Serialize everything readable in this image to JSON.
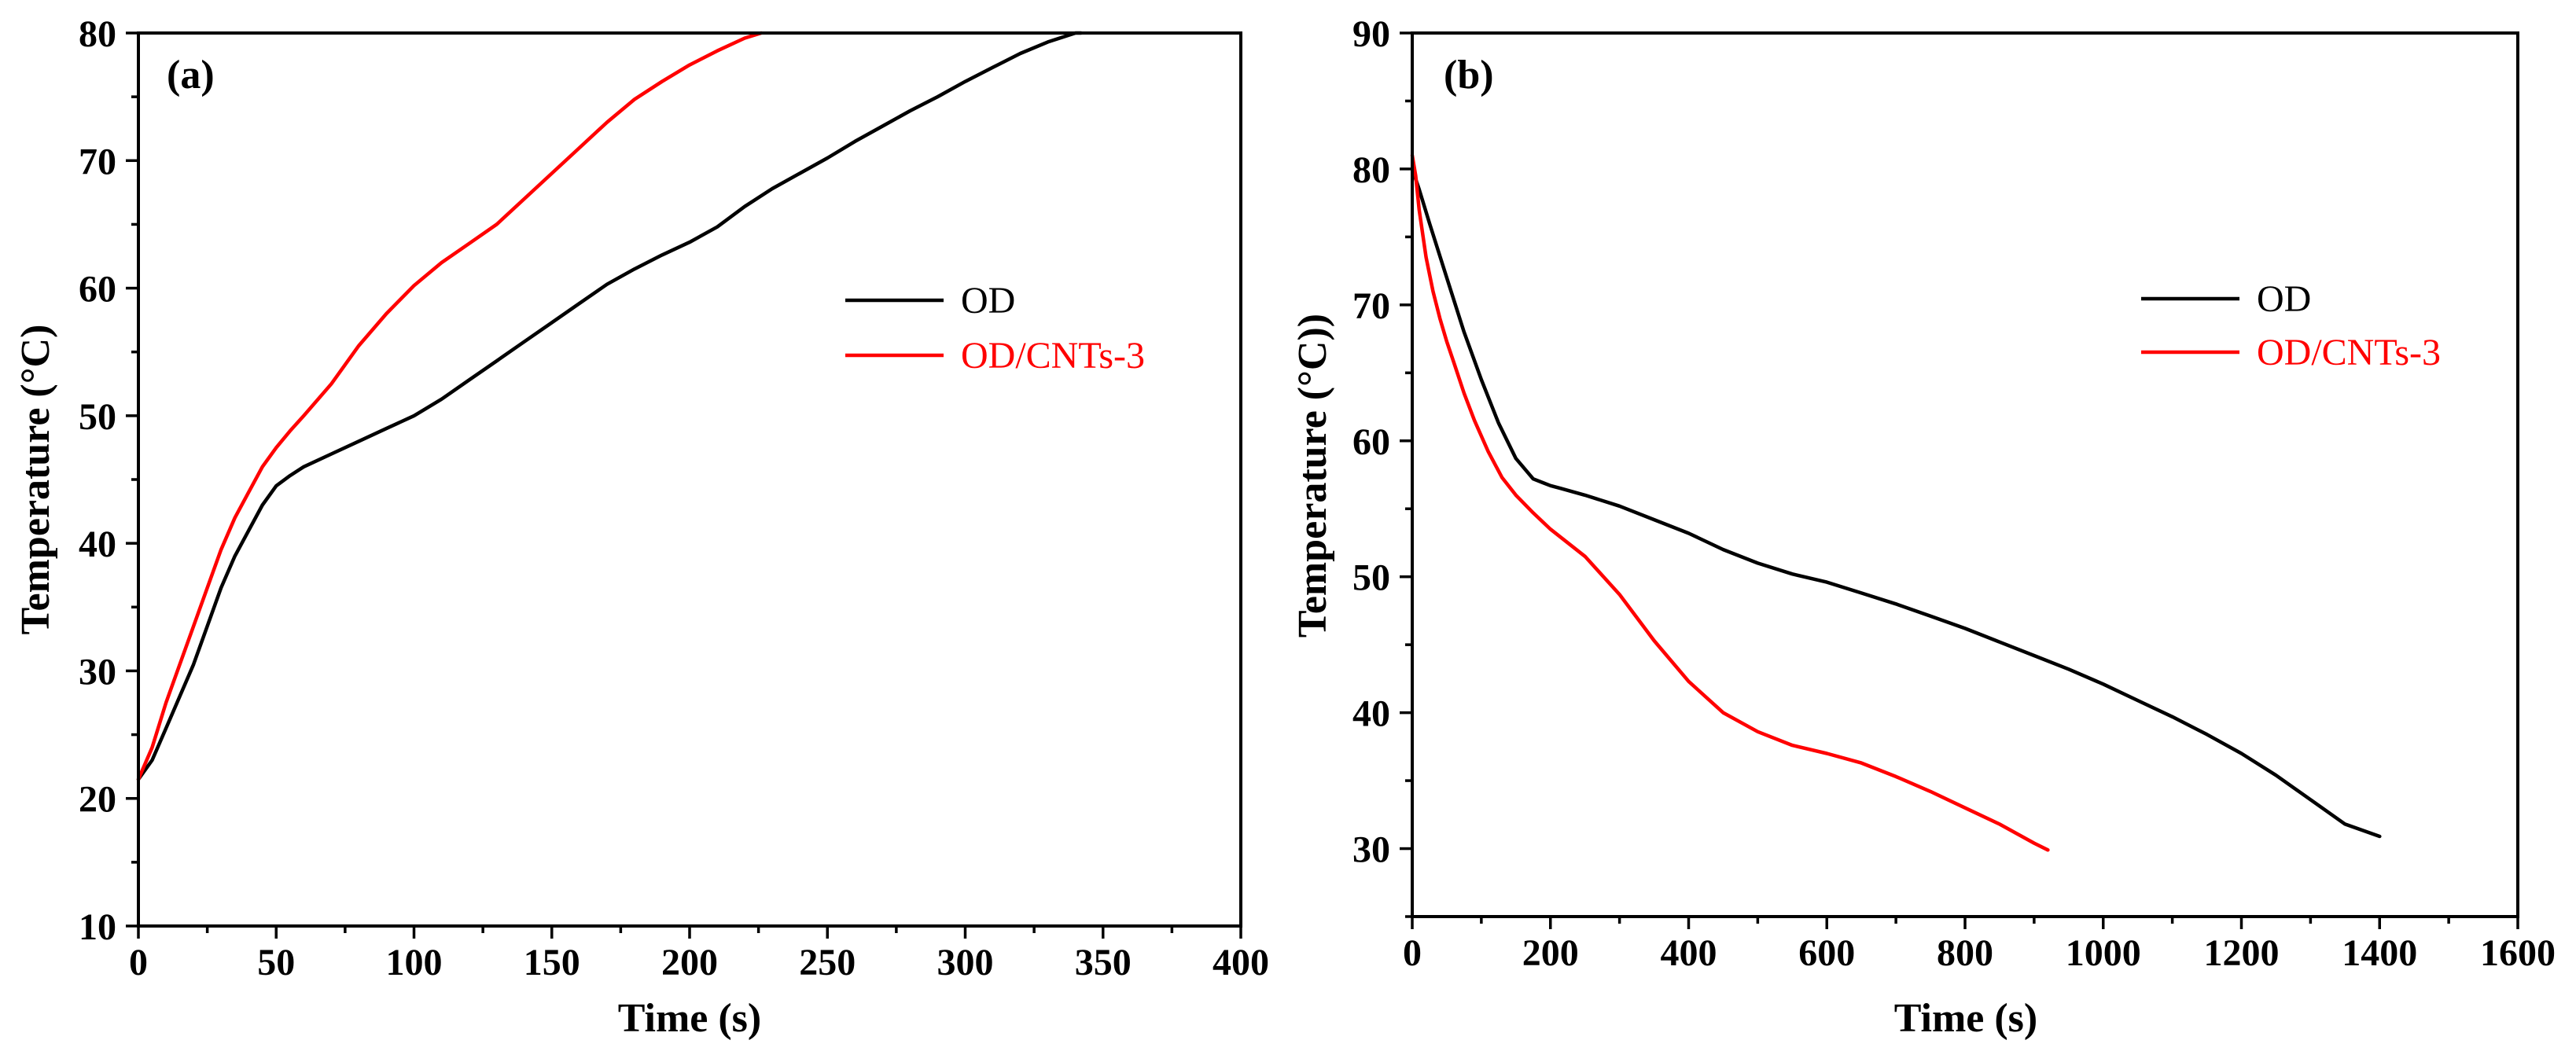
{
  "chart_data": [
    {
      "type": "line",
      "panel_label": "(a)",
      "xlabel": "Time (s)",
      "ylabel": "Temperature (°C)",
      "xlim": [
        0,
        400
      ],
      "ylim": [
        10,
        80
      ],
      "xticks": [
        0,
        50,
        100,
        150,
        200,
        250,
        300,
        350,
        400
      ],
      "yticks": [
        10,
        20,
        30,
        40,
        50,
        60,
        70,
        80
      ],
      "xtick_labels": [
        "0",
        "50",
        "100",
        "150",
        "200",
        "250",
        "300",
        "350",
        "400"
      ],
      "ytick_labels": [
        "10",
        "20",
        "30",
        "40",
        "50",
        "60",
        "70",
        "80"
      ],
      "legend_position": "center-right",
      "series": [
        {
          "name": "OD",
          "color": "#000000",
          "x": [
            0,
            5,
            10,
            15,
            20,
            25,
            30,
            35,
            40,
            45,
            50,
            55,
            60,
            70,
            80,
            90,
            100,
            110,
            120,
            130,
            140,
            150,
            160,
            170,
            180,
            190,
            200,
            210,
            220,
            230,
            240,
            250,
            260,
            270,
            280,
            290,
            300,
            310,
            320,
            330,
            340,
            342
          ],
          "y": [
            21.5,
            23,
            25.5,
            28,
            30.5,
            33.5,
            36.5,
            39,
            41,
            43,
            44.5,
            45.3,
            46,
            47,
            48,
            49,
            50,
            51.3,
            52.8,
            54.3,
            55.8,
            57.3,
            58.8,
            60.3,
            61.5,
            62.6,
            63.6,
            64.8,
            66.4,
            67.8,
            69,
            70.2,
            71.5,
            72.7,
            73.9,
            75,
            76.2,
            77.3,
            78.4,
            79.3,
            80,
            80
          ]
        },
        {
          "name": "OD/CNTs-3",
          "color": "#ff0000",
          "x": [
            0,
            5,
            10,
            15,
            20,
            25,
            30,
            35,
            40,
            45,
            50,
            55,
            60,
            70,
            80,
            90,
            100,
            110,
            120,
            130,
            140,
            150,
            160,
            170,
            180,
            190,
            200,
            210,
            220,
            226
          ],
          "y": [
            21.5,
            24,
            27.5,
            30.5,
            33.5,
            36.5,
            39.5,
            42,
            44,
            46,
            47.5,
            48.8,
            50,
            52.5,
            55.5,
            58,
            60.2,
            62,
            63.5,
            65,
            67,
            69,
            71,
            73,
            74.8,
            76.2,
            77.5,
            78.6,
            79.6,
            80
          ]
        }
      ]
    },
    {
      "type": "line",
      "panel_label": "(b)",
      "xlabel": "Time (s)",
      "ylabel": "Temperature (°C))",
      "xlim": [
        0,
        1600
      ],
      "ylim": [
        25,
        90
      ],
      "xticks": [
        0,
        200,
        400,
        600,
        800,
        1000,
        1200,
        1400,
        1600
      ],
      "yticks": [
        30,
        40,
        50,
        60,
        70,
        80,
        90
      ],
      "xtick_labels": [
        "0",
        "200",
        "400",
        "600",
        "800",
        "1000",
        "1200",
        "1400",
        "1600"
      ],
      "ytick_labels": [
        "30",
        "40",
        "50",
        "60",
        "70",
        "80",
        "90"
      ],
      "legend_position": "upper-right",
      "series": [
        {
          "name": "OD",
          "color": "#000000",
          "x": [
            0,
            10,
            25,
            50,
            75,
            100,
            125,
            150,
            175,
            190,
            200,
            215,
            250,
            300,
            350,
            400,
            450,
            500,
            550,
            600,
            650,
            700,
            750,
            800,
            850,
            900,
            950,
            1000,
            1050,
            1100,
            1150,
            1200,
            1250,
            1300,
            1350,
            1400
          ],
          "y": [
            80,
            78.5,
            76,
            72,
            68,
            64.5,
            61.3,
            58.7,
            57.2,
            56.9,
            56.7,
            56.5,
            56,
            55.2,
            54.2,
            53.2,
            52,
            51,
            50.2,
            49.6,
            48.8,
            48,
            47.1,
            46.2,
            45.2,
            44.2,
            43.2,
            42.1,
            40.9,
            39.7,
            38.4,
            37,
            35.4,
            33.6,
            31.8,
            30.9
          ]
        },
        {
          "name": "OD/CNTs-3",
          "color": "#ff0000",
          "x": [
            0,
            5,
            10,
            20,
            30,
            40,
            50,
            60,
            75,
            90,
            110,
            130,
            150,
            175,
            200,
            250,
            300,
            350,
            400,
            450,
            500,
            550,
            600,
            650,
            700,
            750,
            800,
            850,
            900,
            920
          ],
          "y": [
            81,
            79.5,
            77,
            73.5,
            71,
            69,
            67.3,
            65.8,
            63.5,
            61.5,
            59.2,
            57.3,
            56,
            54.7,
            53.5,
            51.5,
            48.7,
            45.3,
            42.3,
            40,
            38.6,
            37.6,
            37,
            36.3,
            35.3,
            34.2,
            33,
            31.8,
            30.4,
            29.9
          ]
        }
      ]
    }
  ]
}
